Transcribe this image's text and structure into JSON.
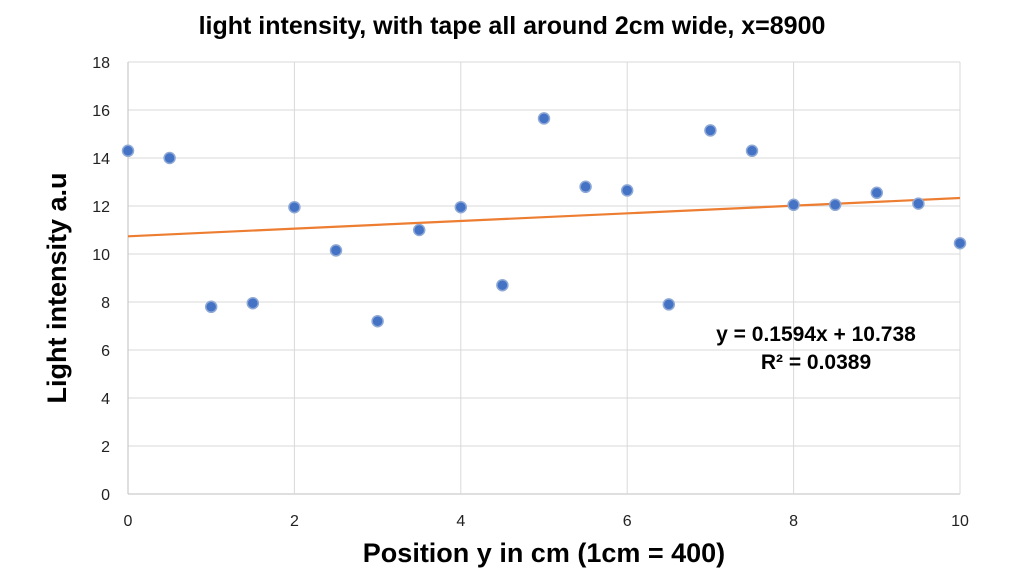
{
  "chart_data": {
    "type": "scatter",
    "title": "light intensity, with tape all around 2cm wide, x=8900",
    "xlabel": "Position y in cm (1cm = 400)",
    "ylabel": "Light intensity a.u",
    "xlim": [
      0,
      10
    ],
    "ylim": [
      0,
      18
    ],
    "xticks": [
      0,
      2,
      4,
      6,
      8,
      10
    ],
    "yticks": [
      0,
      2,
      4,
      6,
      8,
      10,
      12,
      14,
      16,
      18
    ],
    "xtick_labels": [
      "0",
      "2",
      "4",
      "6",
      "8",
      "10"
    ],
    "ytick_labels": [
      "0",
      "2",
      "4",
      "6",
      "8",
      "10",
      "12",
      "14",
      "16",
      "18"
    ],
    "grid": true,
    "legend": "none",
    "series": [
      {
        "x": [
          0,
          0.5,
          1,
          1.5,
          2,
          2.5,
          3,
          3.5,
          4,
          4.5,
          5,
          5.5,
          6,
          6.5,
          7,
          7.5,
          8,
          8.5,
          9,
          9.5,
          10
        ],
        "y": [
          14.3,
          14.0,
          7.8,
          7.95,
          11.95,
          10.15,
          7.2,
          11.0,
          11.95,
          8.7,
          15.65,
          12.8,
          12.65,
          7.9,
          15.15,
          14.3,
          12.05,
          12.05,
          12.55,
          12.1,
          10.45
        ],
        "color": "#4472c4"
      }
    ],
    "trendline": {
      "type": "linear",
      "slope": 0.1594,
      "intercept": 10.738,
      "color": "#ed7d31",
      "equation": "y = 0.1594x + 10.738",
      "r_squared": "R² = 0.0389"
    }
  }
}
